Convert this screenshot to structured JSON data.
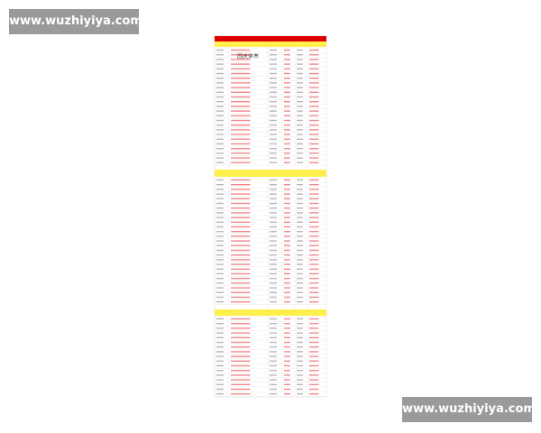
{
  "watermark_top": "www.wuzhiyiya.com",
  "watermark_bottom": "www.wuzhiyiya.com",
  "table": {
    "holiday_label": "国庆休市"
  }
}
